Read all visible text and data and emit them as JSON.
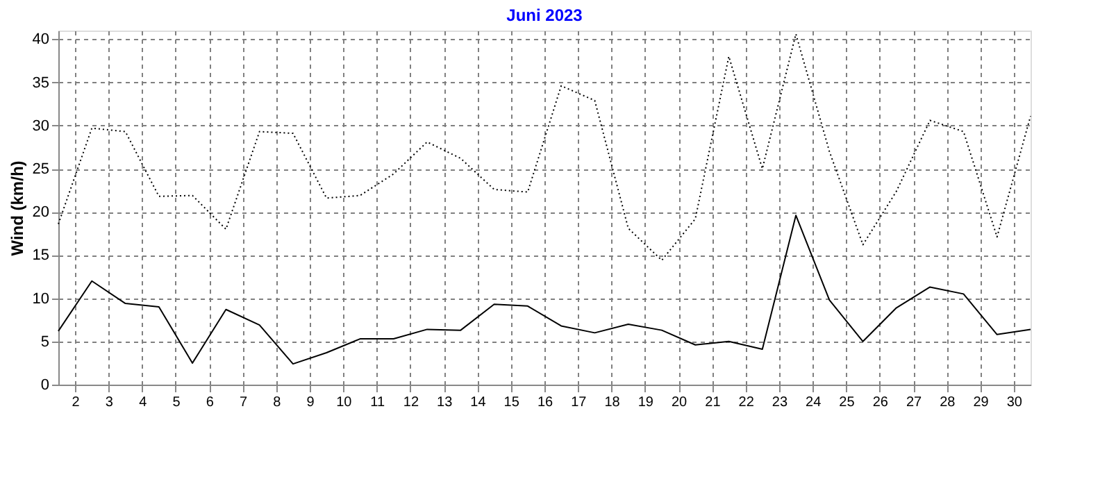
{
  "chart_data": {
    "type": "line",
    "title": "Juni 2023",
    "ylabel": "Wind  (km/h)",
    "x": [
      1.5,
      2.5,
      3.5,
      4.5,
      5.5,
      6.5,
      7.5,
      8.5,
      9.5,
      10.5,
      11.5,
      12.5,
      13.5,
      14.5,
      15.5,
      16.5,
      17.5,
      18.5,
      19.5,
      20.5,
      21.5,
      22.5,
      23.5,
      24.5,
      25.5,
      26.5,
      27.5,
      28.5,
      29.5,
      30.5
    ],
    "series": [
      {
        "color": "#000000",
        "line_style": "solid",
        "values": [
          6.2,
          12.0,
          9.4,
          9.0,
          2.5,
          8.7,
          6.9,
          2.4,
          3.7,
          5.3,
          5.3,
          6.4,
          6.3,
          9.3,
          9.1,
          6.8,
          6.0,
          7.0,
          6.3,
          4.6,
          5.0,
          4.1,
          19.6,
          9.8,
          5.0,
          8.9,
          11.3,
          10.5,
          5.8,
          6.4
        ]
      },
      {
        "color": "#000000",
        "line_style": "dotted",
        "values": [
          18.6,
          29.7,
          29.3,
          21.8,
          21.9,
          18.0,
          29.3,
          29.1,
          21.6,
          21.9,
          24.4,
          28.1,
          26.2,
          22.6,
          22.3,
          34.6,
          32.9,
          18.1,
          14.4,
          19.2,
          38.0,
          25.0,
          40.6,
          27.0,
          16.2,
          22.4,
          30.6,
          29.3,
          17.1,
          31.1
        ]
      }
    ],
    "xlim": [
      1.5,
      30.5
    ],
    "xticks": [
      2,
      3,
      4,
      5,
      6,
      7,
      8,
      9,
      10,
      11,
      12,
      13,
      14,
      15,
      16,
      17,
      18,
      19,
      20,
      21,
      22,
      23,
      24,
      25,
      26,
      27,
      28,
      29,
      30
    ],
    "ylim": [
      0,
      41
    ],
    "yticks": [
      0,
      5,
      10,
      15,
      20,
      25,
      30,
      35,
      40
    ],
    "grid": true,
    "marker": "none"
  }
}
